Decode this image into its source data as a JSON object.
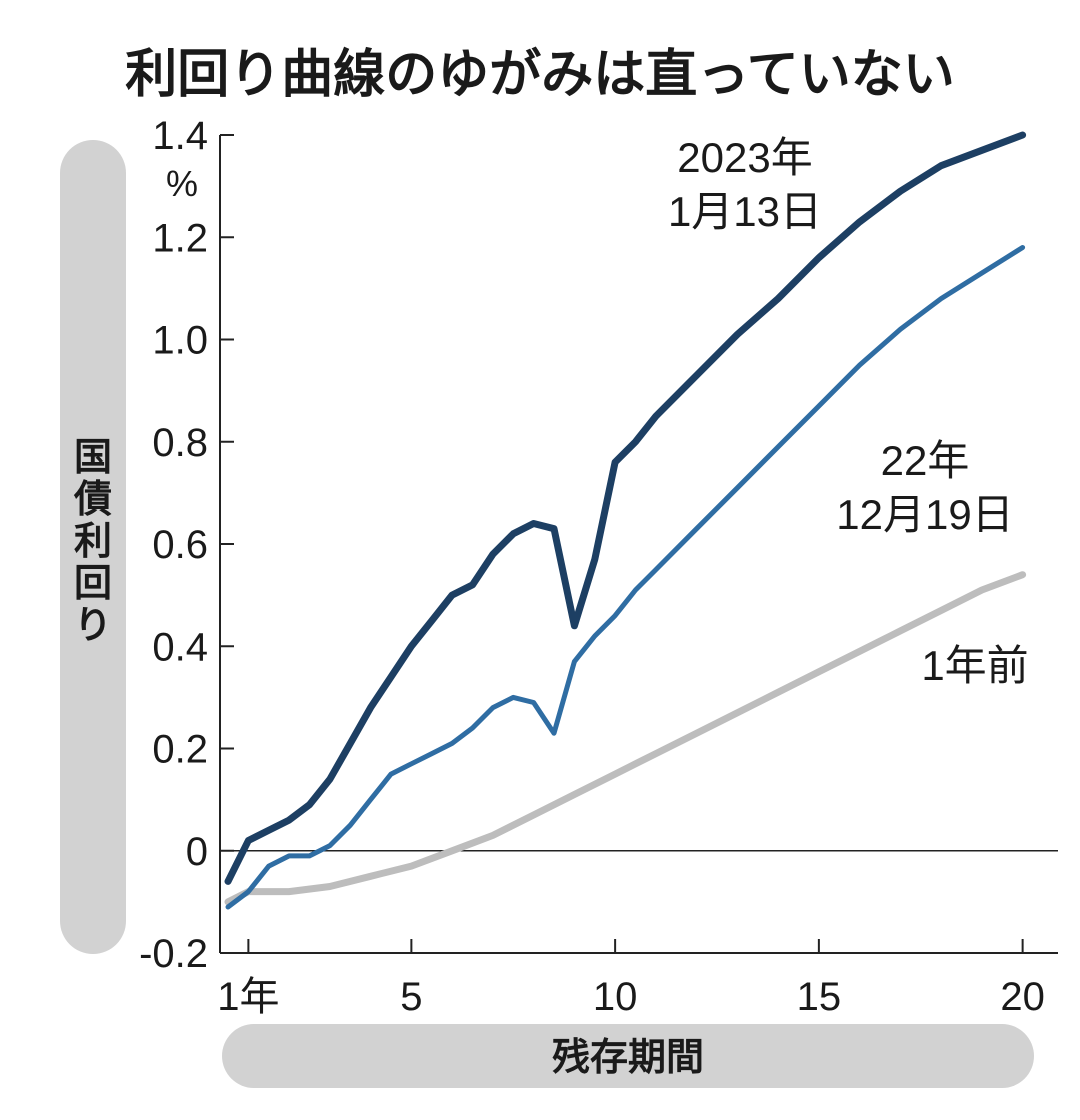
{
  "chart_data": {
    "type": "line",
    "title": "利回り曲線のゆがみは直っていない",
    "xlabel": "残存期間",
    "ylabel": "国債利回り",
    "y_unit": "%",
    "xlim": [
      0.5,
      20.5
    ],
    "ylim": [
      -0.2,
      1.4
    ],
    "x_ticks": [
      {
        "value": 1,
        "label": "1年"
      },
      {
        "value": 5,
        "label": "5"
      },
      {
        "value": 10,
        "label": "10"
      },
      {
        "value": 15,
        "label": "15"
      },
      {
        "value": 20,
        "label": "20"
      }
    ],
    "y_ticks": [
      {
        "value": 1.4,
        "label": "1.4"
      },
      {
        "value": 1.2,
        "label": "1.2"
      },
      {
        "value": 1.0,
        "label": "1.0"
      },
      {
        "value": 0.8,
        "label": "0.8"
      },
      {
        "value": 0.6,
        "label": "0.6"
      },
      {
        "value": 0.4,
        "label": "0.4"
      },
      {
        "value": 0.2,
        "label": "0.2"
      },
      {
        "value": 0,
        "label": "0"
      },
      {
        "value": -0.2,
        "label": "-0.2"
      }
    ],
    "zero_line": true,
    "series": [
      {
        "name": "2023年1月13日",
        "label_lines": [
          "2023年",
          "1月13日"
        ],
        "color": "#1d3f63",
        "x": [
          0.5,
          1,
          1.5,
          2,
          2.5,
          3,
          3.5,
          4,
          4.5,
          5,
          5.5,
          6,
          6.5,
          7,
          7.5,
          8,
          8.5,
          9,
          9.5,
          10,
          10.5,
          11,
          12,
          13,
          14,
          15,
          16,
          17,
          18,
          19,
          20
        ],
        "values": [
          -0.06,
          0.02,
          0.04,
          0.06,
          0.09,
          0.14,
          0.21,
          0.28,
          0.34,
          0.4,
          0.45,
          0.5,
          0.52,
          0.58,
          0.62,
          0.64,
          0.63,
          0.44,
          0.57,
          0.76,
          0.8,
          0.85,
          0.93,
          1.01,
          1.08,
          1.16,
          1.23,
          1.29,
          1.34,
          1.37,
          1.4
        ]
      },
      {
        "name": "22年12月19日",
        "label_lines": [
          "22年",
          "12月19日"
        ],
        "color": "#2f6da3",
        "x": [
          0.5,
          1,
          1.5,
          2,
          2.5,
          3,
          3.5,
          4,
          4.5,
          5,
          5.5,
          6,
          6.5,
          7,
          7.5,
          8,
          8.5,
          9,
          9.5,
          10,
          10.5,
          11,
          12,
          13,
          14,
          15,
          16,
          17,
          18,
          19,
          20
        ],
        "values": [
          -0.11,
          -0.08,
          -0.03,
          -0.01,
          -0.01,
          0.01,
          0.05,
          0.1,
          0.15,
          0.17,
          0.19,
          0.21,
          0.24,
          0.28,
          0.3,
          0.29,
          0.23,
          0.37,
          0.42,
          0.46,
          0.51,
          0.55,
          0.63,
          0.71,
          0.79,
          0.87,
          0.95,
          1.02,
          1.08,
          1.13,
          1.18
        ]
      },
      {
        "name": "1年前",
        "label_lines": [
          "1年前"
        ],
        "color": "#bdbdbd",
        "x": [
          0.5,
          1,
          2,
          3,
          4,
          5,
          6,
          7,
          8,
          9,
          10,
          11,
          12,
          13,
          14,
          15,
          16,
          17,
          18,
          19,
          20
        ],
        "values": [
          -0.1,
          -0.08,
          -0.08,
          -0.07,
          -0.05,
          -0.03,
          0.0,
          0.03,
          0.07,
          0.11,
          0.15,
          0.19,
          0.23,
          0.27,
          0.31,
          0.35,
          0.39,
          0.43,
          0.47,
          0.51,
          0.54
        ]
      }
    ]
  }
}
